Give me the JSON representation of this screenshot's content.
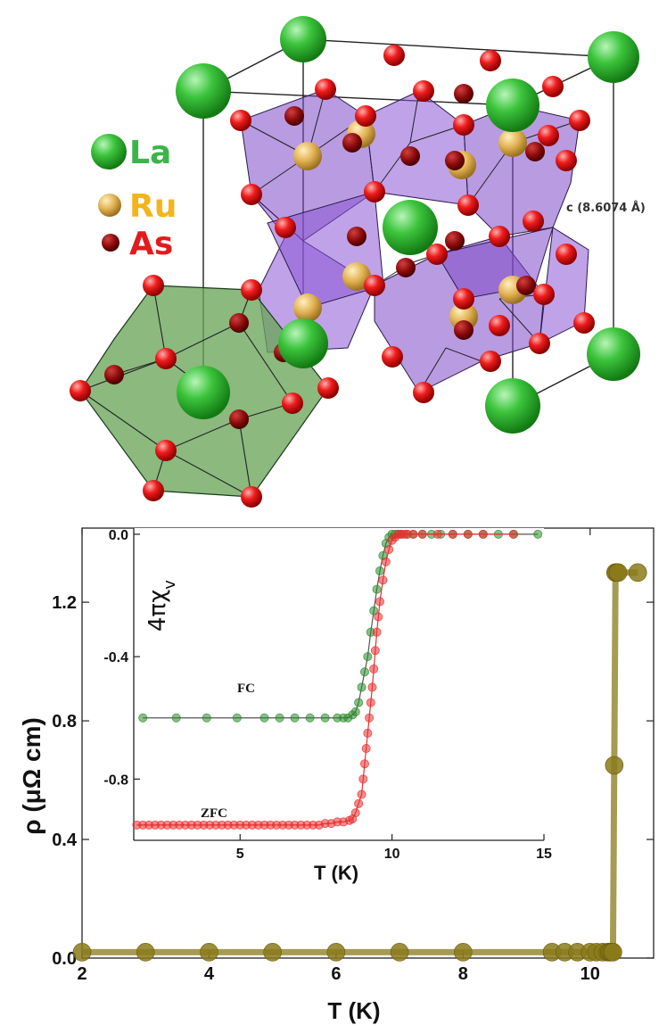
{
  "structure": {
    "legend": [
      {
        "element": "La",
        "color": "#3cc43c"
      },
      {
        "element": "Ru",
        "color": "#e8b24a"
      },
      {
        "element": "As",
        "color": "#cc1010"
      }
    ],
    "cell_label": "c (8.6074 Å)",
    "colors": {
      "polyhedra": "#7b4fc9",
      "cage": "#5a9a4a"
    }
  },
  "chart_data": [
    {
      "type": "scatter",
      "xlabel": "T (K)",
      "ylabel": "ρ (μΩ cm)",
      "xlim": [
        2,
        11
      ],
      "ylim": [
        0,
        1.45
      ],
      "xticks": [
        2,
        4,
        6,
        8,
        10
      ],
      "yticks": [
        0.0,
        0.4,
        0.8,
        1.2
      ],
      "ytick_labels": [
        "0.0",
        "0.4",
        "0.8",
        "1.2"
      ],
      "color": "#8a7a1a",
      "series": [
        {
          "x": [
            2,
            3,
            4,
            5,
            6,
            7,
            8,
            9.4,
            9.6,
            9.8,
            10.0,
            10.1,
            10.2,
            10.28,
            10.3,
            10.32,
            10.34,
            10.36,
            10.38,
            10.4,
            10.42,
            10.44,
            10.75
          ],
          "y": [
            0.02,
            0.02,
            0.02,
            0.02,
            0.02,
            0.02,
            0.02,
            0.02,
            0.02,
            0.02,
            0.02,
            0.02,
            0.02,
            0.02,
            0.02,
            0.02,
            0.02,
            0.02,
            0.65,
            1.3,
            1.3,
            1.3,
            1.3
          ]
        }
      ]
    },
    {
      "type": "scatter",
      "xlabel": "T (K)",
      "ylabel": "4πχ",
      "ylabel_sub": "v",
      "xlim": [
        1.5,
        15
      ],
      "ylim": [
        -1.0,
        0.02
      ],
      "xticks": [
        5,
        10,
        15
      ],
      "yticks": [
        0.0,
        -0.4,
        -0.8
      ],
      "ytick_labels": [
        "0.0",
        "-0.4",
        "-0.8"
      ],
      "series": [
        {
          "name": "FC",
          "color": "#2a8a2a",
          "x": [
            1.8,
            2.9,
            3.9,
            4.9,
            5.8,
            6.3,
            6.8,
            7.3,
            7.8,
            8.2,
            8.4,
            8.55,
            8.7,
            8.8,
            8.9,
            9.0,
            9.1,
            9.2,
            9.3,
            9.4,
            9.5,
            9.6,
            9.7,
            9.8,
            9.9,
            10.0,
            10.1,
            10.2,
            10.3,
            10.5,
            10.7,
            11.0,
            11.3,
            11.6,
            12.0,
            12.5,
            13.0,
            13.5,
            14.0,
            14.8
          ],
          "y": [
            -0.6,
            -0.6,
            -0.6,
            -0.6,
            -0.6,
            -0.6,
            -0.6,
            -0.6,
            -0.6,
            -0.6,
            -0.6,
            -0.6,
            -0.59,
            -0.58,
            -0.55,
            -0.5,
            -0.45,
            -0.4,
            -0.32,
            -0.25,
            -0.18,
            -0.12,
            -0.07,
            -0.03,
            -0.01,
            0.0,
            0.0,
            0.0,
            0.0,
            0.0,
            0.0,
            0.0,
            0.0,
            0.0,
            0.0,
            0.0,
            0.0,
            0.0,
            0.0,
            0.0
          ]
        },
        {
          "name": "ZFC",
          "color": "#e83030",
          "x": [
            1.6,
            1.8,
            2.0,
            2.2,
            2.4,
            2.6,
            2.8,
            3.0,
            3.2,
            3.4,
            3.6,
            3.8,
            4.0,
            4.2,
            4.4,
            4.6,
            4.8,
            5.0,
            5.2,
            5.4,
            5.6,
            5.8,
            6.0,
            6.2,
            6.4,
            6.6,
            6.8,
            7.0,
            7.2,
            7.4,
            7.6,
            7.8,
            8.0,
            8.2,
            8.4,
            8.6,
            8.7,
            8.8,
            8.9,
            9.0,
            9.05,
            9.1,
            9.15,
            9.2,
            9.25,
            9.3,
            9.35,
            9.4,
            9.45,
            9.5,
            9.55,
            9.6,
            9.7,
            9.8,
            9.9,
            10.0,
            10.1,
            10.2,
            10.3,
            10.4,
            10.5,
            10.7,
            11.0,
            11.5,
            12.0,
            12.5,
            13.0,
            14.0
          ],
          "y": [
            -0.95,
            -0.95,
            -0.95,
            -0.95,
            -0.95,
            -0.95,
            -0.95,
            -0.95,
            -0.95,
            -0.95,
            -0.95,
            -0.95,
            -0.95,
            -0.95,
            -0.95,
            -0.95,
            -0.95,
            -0.95,
            -0.95,
            -0.95,
            -0.95,
            -0.95,
            -0.95,
            -0.95,
            -0.95,
            -0.95,
            -0.95,
            -0.95,
            -0.95,
            -0.95,
            -0.95,
            -0.945,
            -0.945,
            -0.94,
            -0.94,
            -0.935,
            -0.93,
            -0.91,
            -0.88,
            -0.85,
            -0.8,
            -0.75,
            -0.7,
            -0.65,
            -0.6,
            -0.55,
            -0.5,
            -0.44,
            -0.38,
            -0.32,
            -0.27,
            -0.22,
            -0.15,
            -0.09,
            -0.05,
            -0.02,
            -0.01,
            0.0,
            0.0,
            0.0,
            0.0,
            0.0,
            0.0,
            0.0,
            0.0,
            0.0,
            0.0,
            0.0
          ]
        }
      ]
    }
  ]
}
